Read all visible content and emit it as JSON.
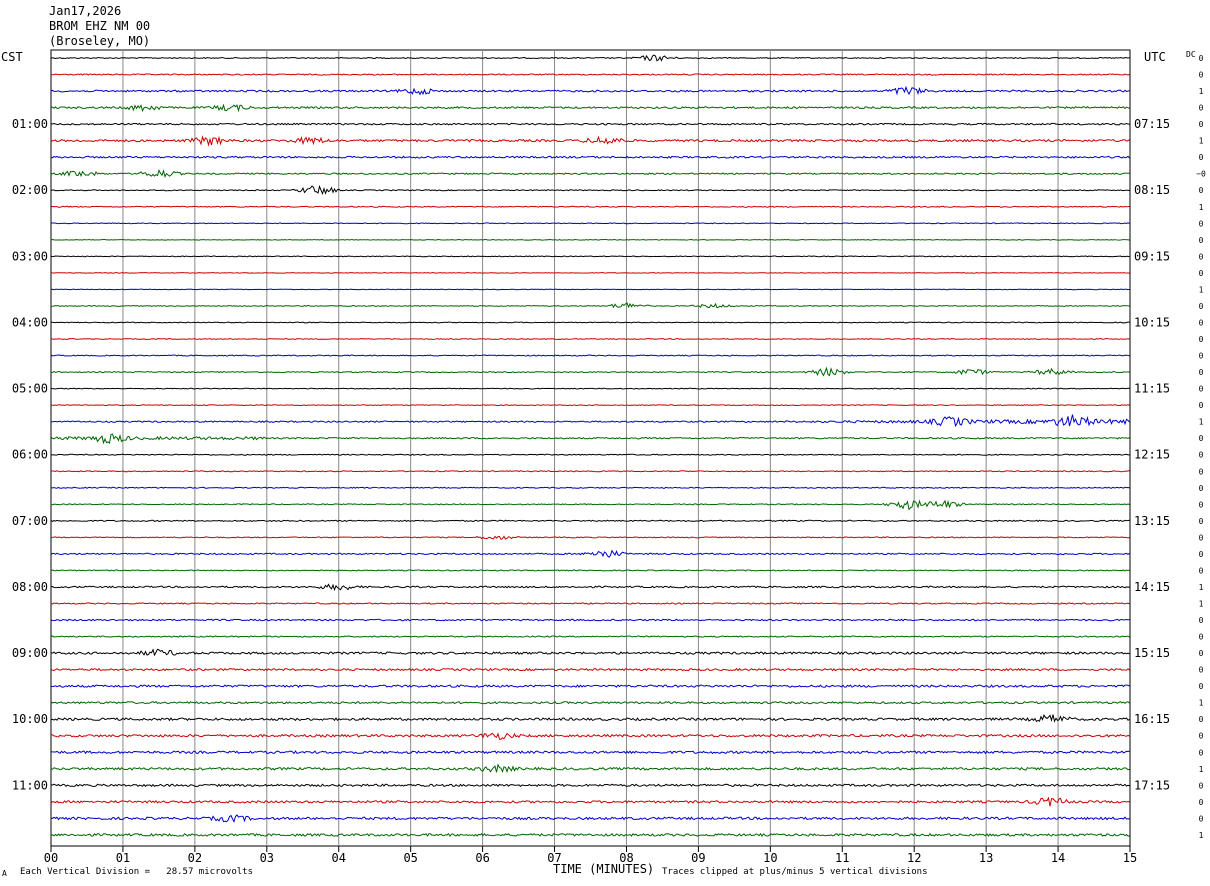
{
  "header": {
    "date": "Jan17,2026",
    "station": "BROM EHZ NM 00",
    "location": "(Broseley, MO)"
  },
  "left_timezone": "CST",
  "right_timezone": "UTC",
  "dc_label": "DC",
  "footer": {
    "scale_note": "Each Vertical Division =   28.57 microvolts",
    "xlabel": "TIME (MINUTES)",
    "clip_note": "Traces clipped at plus/minus 5 vertical divisions",
    "corner_mark": "A"
  },
  "chart_data": {
    "type": "line",
    "xlabel": "TIME (MINUTES)",
    "xlim": [
      0,
      15
    ],
    "x_ticks": [
      "00",
      "01",
      "02",
      "03",
      "04",
      "05",
      "06",
      "07",
      "08",
      "09",
      "10",
      "11",
      "12",
      "13",
      "14",
      "15"
    ],
    "trace_count": 48,
    "trace_colors": [
      "#000000",
      "#cc0000",
      "#0000cc",
      "#006600"
    ],
    "left_hour_labels": [
      "01:00",
      "02:00",
      "03:00",
      "04:00",
      "05:00",
      "06:00",
      "07:00",
      "08:00",
      "09:00",
      "10:00",
      "11:00"
    ],
    "right_hour_labels": [
      "07:15",
      "08:15",
      "09:15",
      "10:15",
      "11:15",
      "12:15",
      "13:15",
      "14:15",
      "15:15",
      "16:15",
      "17:15"
    ],
    "dc_offsets": [
      "0",
      "0",
      "1",
      "0",
      "0",
      "1",
      "0",
      "−0",
      "0",
      "1",
      "0",
      "0",
      "0",
      "0",
      "1",
      "0",
      "0",
      "0",
      "0",
      "0",
      "0",
      "0",
      "1",
      "0",
      "0",
      "0",
      "0",
      "0",
      "0",
      "0",
      "0",
      "0",
      "1",
      "1",
      "0",
      "0",
      "0",
      "0",
      "0",
      "1",
      "0",
      "0",
      "0",
      "1",
      "0",
      "0",
      "0",
      "1"
    ],
    "amplitude_profile": [
      0.5,
      0.6,
      0.9,
      0.9,
      0.8,
      1.1,
      0.9,
      0.7,
      0.5,
      0.5,
      0.4,
      0.3,
      0.4,
      0.3,
      0.3,
      0.4,
      0.4,
      0.4,
      0.5,
      0.5,
      0.4,
      0.4,
      0.7,
      0.7,
      0.5,
      0.5,
      0.5,
      0.5,
      0.6,
      0.5,
      0.7,
      0.5,
      0.8,
      0.6,
      0.8,
      0.6,
      1.1,
      1.0,
      1.1,
      1.0,
      1.2,
      1.2,
      1.2,
      1.2,
      1.1,
      1.1,
      1.2,
      1.2
    ],
    "events": [
      {
        "trace": 0,
        "minute": 8.4,
        "amp": 3
      },
      {
        "trace": 2,
        "minute": 5.1,
        "amp": 3
      },
      {
        "trace": 2,
        "minute": 11.9,
        "amp": 4
      },
      {
        "trace": 3,
        "minute": 1.3,
        "amp": 3
      },
      {
        "trace": 3,
        "minute": 2.5,
        "amp": 3
      },
      {
        "trace": 5,
        "minute": 2.2,
        "amp": 4
      },
      {
        "trace": 5,
        "minute": 3.6,
        "amp": 3
      },
      {
        "trace": 5,
        "minute": 7.7,
        "amp": 4
      },
      {
        "trace": 7,
        "minute": 1.5,
        "amp": 4
      },
      {
        "trace": 7,
        "minute": 0.4,
        "amp": 3
      },
      {
        "trace": 8,
        "minute": 3.7,
        "amp": 5
      },
      {
        "trace": 15,
        "minute": 8.0,
        "amp": 3
      },
      {
        "trace": 15,
        "minute": 9.2,
        "amp": 2
      },
      {
        "trace": 19,
        "minute": 10.8,
        "amp": 4
      },
      {
        "trace": 19,
        "minute": 12.8,
        "amp": 3
      },
      {
        "trace": 19,
        "minute": 13.9,
        "amp": 3
      },
      {
        "trace": 22,
        "minute": 12.5,
        "amp": 4
      },
      {
        "trace": 22,
        "minute": 14.2,
        "amp": 5
      },
      {
        "trace": 23,
        "minute": 0.8,
        "amp": 4
      },
      {
        "trace": 27,
        "minute": 11.9,
        "amp": 5
      },
      {
        "trace": 27,
        "minute": 12.4,
        "amp": 4
      },
      {
        "trace": 29,
        "minute": 6.2,
        "amp": 2
      },
      {
        "trace": 30,
        "minute": 7.7,
        "amp": 4
      },
      {
        "trace": 32,
        "minute": 4.0,
        "amp": 3
      },
      {
        "trace": 36,
        "minute": 1.5,
        "amp": 3
      },
      {
        "trace": 40,
        "minute": 13.9,
        "amp": 4
      },
      {
        "trace": 41,
        "minute": 6.2,
        "amp": 3
      },
      {
        "trace": 43,
        "minute": 6.2,
        "amp": 3
      },
      {
        "trace": 45,
        "minute": 13.9,
        "amp": 4
      },
      {
        "trace": 46,
        "minute": 2.5,
        "amp": 3
      }
    ]
  }
}
